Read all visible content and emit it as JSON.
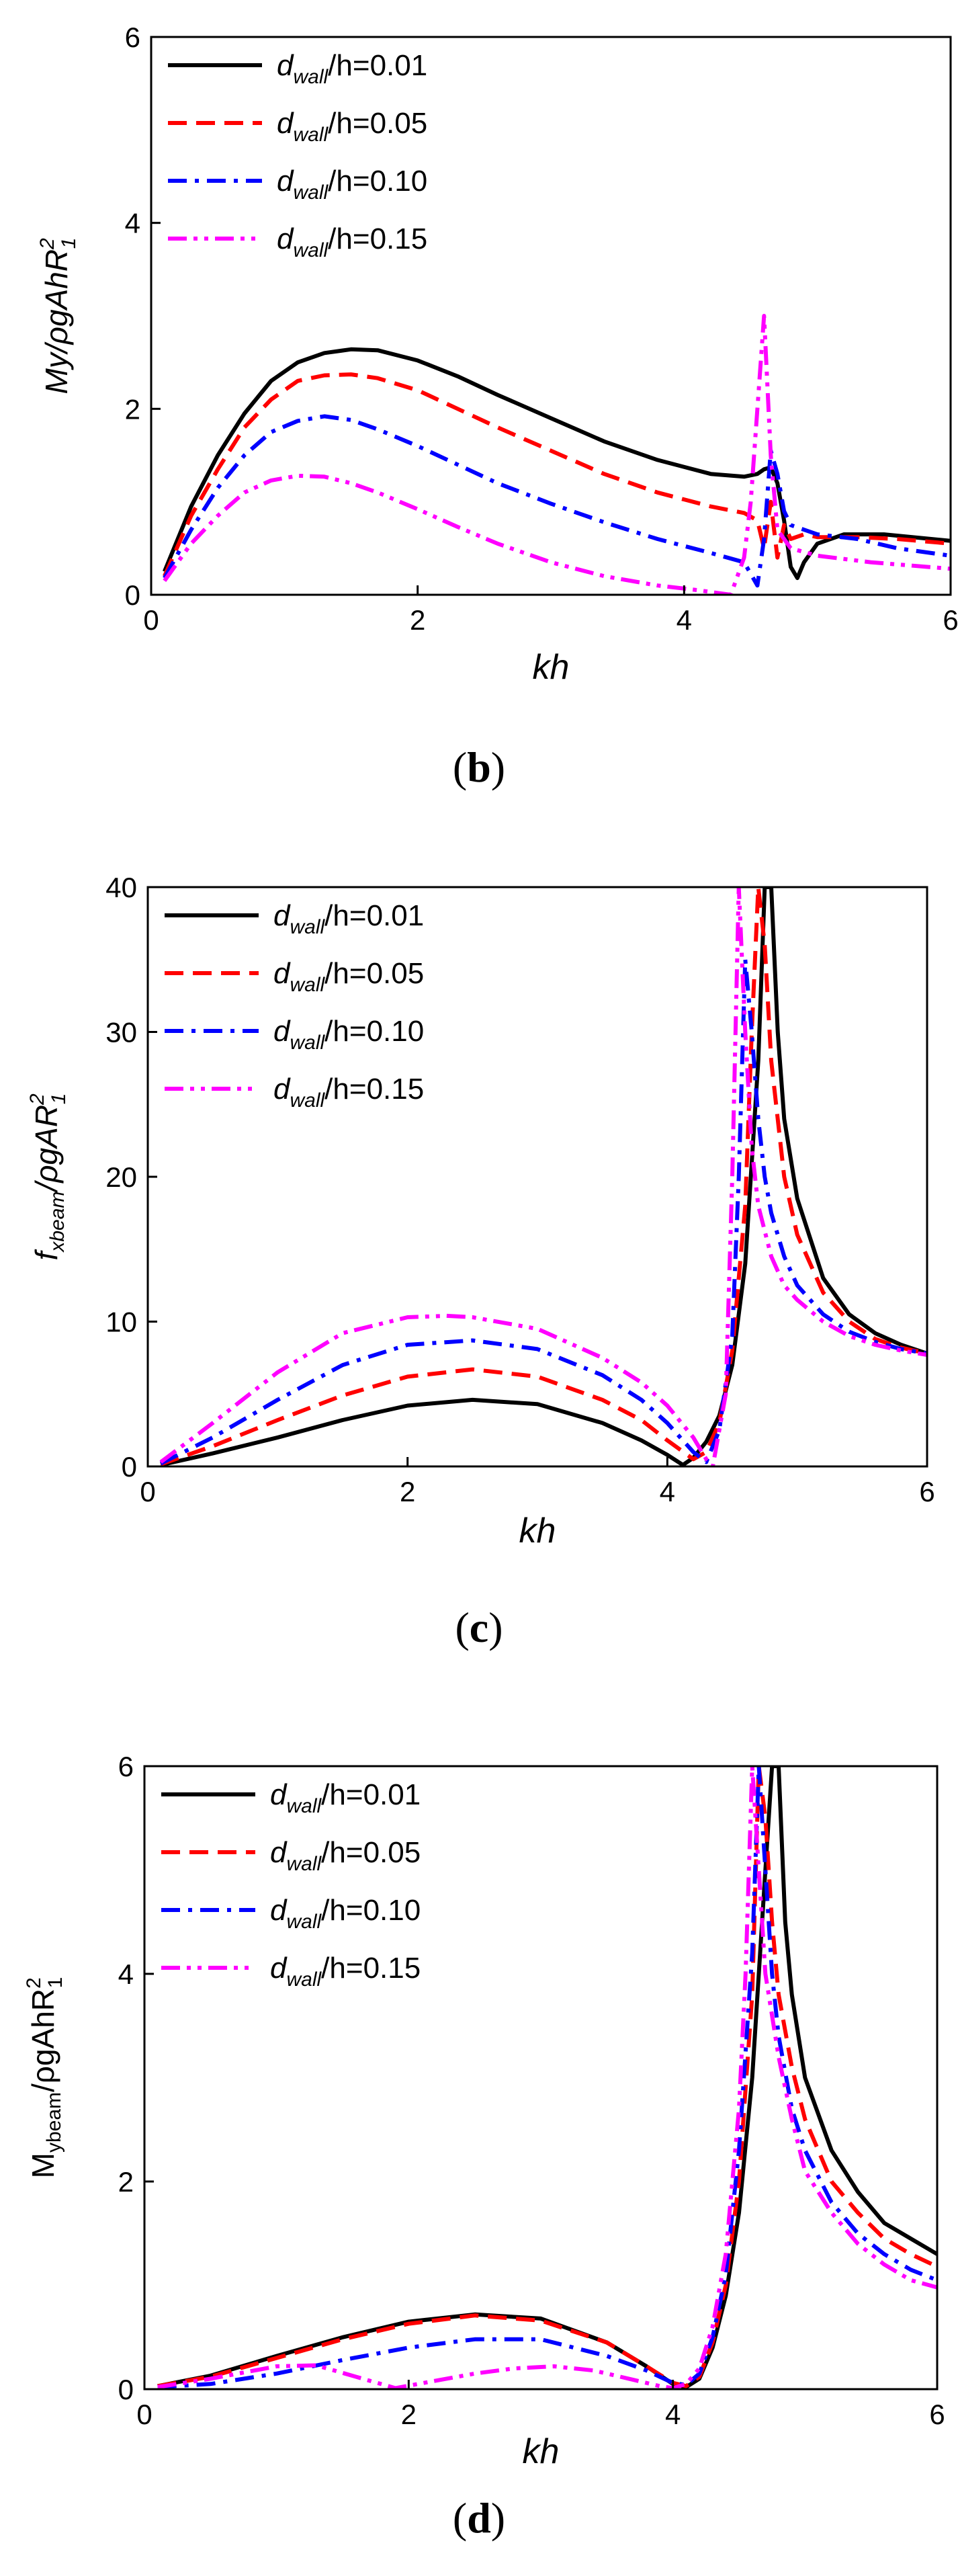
{
  "chart_data": [
    {
      "id": "b",
      "type": "line",
      "caption_letter": "b",
      "xlabel": "kh",
      "ylabel": "My/ρgAhR₁²",
      "ylabel_parts": {
        "main": "My/ρgAhR",
        "sup": "2",
        "sub": "1"
      },
      "xlim": [
        0,
        6
      ],
      "ylim": [
        0,
        6
      ],
      "xticks": [
        "0",
        "2",
        "4",
        "6"
      ],
      "yticks": [
        "0",
        "2",
        "4",
        "6"
      ],
      "legend": [
        {
          "sym": "d",
          "sub": "wall",
          "rest": "/h=0.01"
        },
        {
          "sym": "d",
          "sub": "wall",
          "rest": "/h=0.05"
        },
        {
          "sym": "d",
          "sub": "wall",
          "rest": "/h=0.10"
        },
        {
          "sym": "d",
          "sub": "wall",
          "rest": "/h=0.15"
        }
      ],
      "series": [
        {
          "name": "d_wall/h=0.01",
          "color": "#000000",
          "dash": "solid",
          "x": [
            0.1,
            0.3,
            0.5,
            0.7,
            0.9,
            1.1,
            1.3,
            1.5,
            1.7,
            2.0,
            2.3,
            2.6,
            3.0,
            3.4,
            3.8,
            4.2,
            4.45,
            4.55,
            4.6,
            4.65,
            4.7,
            4.75,
            4.8,
            4.85,
            4.9,
            5.0,
            5.2,
            5.5,
            6.0
          ],
          "y": [
            0.25,
            0.95,
            1.5,
            1.95,
            2.3,
            2.5,
            2.6,
            2.64,
            2.63,
            2.52,
            2.35,
            2.15,
            1.9,
            1.65,
            1.45,
            1.3,
            1.27,
            1.3,
            1.35,
            1.37,
            1.2,
            0.8,
            0.3,
            0.18,
            0.35,
            0.55,
            0.65,
            0.65,
            0.58
          ]
        },
        {
          "name": "d_wall/h=0.05",
          "color": "#ff0000",
          "dash": "dash",
          "x": [
            0.1,
            0.3,
            0.5,
            0.7,
            0.9,
            1.1,
            1.3,
            1.5,
            1.7,
            2.0,
            2.3,
            2.6,
            3.0,
            3.4,
            3.8,
            4.2,
            4.45,
            4.55,
            4.6,
            4.65,
            4.7,
            4.75,
            4.8,
            4.9,
            5.0,
            5.3,
            5.6,
            6.0
          ],
          "y": [
            0.2,
            0.85,
            1.35,
            1.8,
            2.1,
            2.3,
            2.36,
            2.37,
            2.33,
            2.2,
            2.0,
            1.8,
            1.55,
            1.3,
            1.1,
            0.95,
            0.88,
            0.8,
            0.5,
            1.0,
            0.4,
            0.75,
            0.6,
            0.65,
            0.62,
            0.62,
            0.6,
            0.55
          ]
        },
        {
          "name": "d_wall/h=0.10",
          "color": "#0000ff",
          "dash": "dashdot",
          "x": [
            0.1,
            0.3,
            0.5,
            0.7,
            0.9,
            1.1,
            1.3,
            1.5,
            1.7,
            2.0,
            2.3,
            2.6,
            3.0,
            3.4,
            3.8,
            4.2,
            4.45,
            4.55,
            4.6,
            4.65,
            4.7,
            4.75,
            4.8,
            4.9,
            5.0,
            5.3,
            5.6,
            6.0
          ],
          "y": [
            0.18,
            0.7,
            1.15,
            1.5,
            1.75,
            1.87,
            1.92,
            1.88,
            1.78,
            1.6,
            1.4,
            1.2,
            0.98,
            0.78,
            0.6,
            0.45,
            0.35,
            0.1,
            0.6,
            1.55,
            1.3,
            0.9,
            0.75,
            0.7,
            0.65,
            0.6,
            0.5,
            0.42
          ]
        },
        {
          "name": "d_wall/h=0.15",
          "color": "#ff00ff",
          "dash": "dashdotdot",
          "x": [
            0.1,
            0.3,
            0.5,
            0.7,
            0.9,
            1.1,
            1.3,
            1.5,
            1.7,
            2.0,
            2.3,
            2.6,
            3.0,
            3.4,
            3.8,
            4.1,
            4.35,
            4.45,
            4.5,
            4.55,
            4.6,
            4.65,
            4.7,
            4.8,
            5.0,
            5.4,
            6.0
          ],
          "y": [
            0.15,
            0.55,
            0.85,
            1.1,
            1.23,
            1.28,
            1.27,
            1.2,
            1.1,
            0.92,
            0.73,
            0.55,
            0.35,
            0.2,
            0.1,
            0.05,
            0.0,
            0.4,
            1.0,
            2.0,
            3.0,
            1.5,
            0.7,
            0.5,
            0.42,
            0.35,
            0.28
          ]
        }
      ]
    },
    {
      "id": "c",
      "type": "line",
      "caption_letter": "c",
      "xlabel": "kh",
      "ylabel": "f_xbeam/ρgAR₁²",
      "ylabel_parts": {
        "main": "f",
        "sub_main": "xbeam",
        "rest": "/ρgAR",
        "sup": "2",
        "sub": "1"
      },
      "xlim": [
        0,
        6
      ],
      "ylim": [
        0,
        40
      ],
      "xticks": [
        "0",
        "2",
        "4",
        "6"
      ],
      "yticks": [
        "0",
        "10",
        "20",
        "30",
        "40"
      ],
      "legend": [
        {
          "sym": "d",
          "sub": "wall",
          "rest": "/h=0.01"
        },
        {
          "sym": "d",
          "sub": "wall",
          "rest": "/h=0.05"
        },
        {
          "sym": "d",
          "sub": "wall",
          "rest": "/h=0.10"
        },
        {
          "sym": "d",
          "sub": "wall",
          "rest": "/h=0.15"
        }
      ],
      "series": [
        {
          "name": "d_wall/h=0.01",
          "color": "#000000",
          "dash": "solid",
          "x": [
            0.1,
            0.5,
            1.0,
            1.5,
            2.0,
            2.5,
            3.0,
            3.5,
            3.8,
            4.0,
            4.12,
            4.2,
            4.3,
            4.4,
            4.5,
            4.6,
            4.7,
            4.75,
            4.8,
            4.85,
            4.9,
            5.0,
            5.2,
            5.4,
            5.6,
            5.8,
            6.0
          ],
          "y": [
            0.1,
            0.9,
            2.0,
            3.2,
            4.2,
            4.6,
            4.3,
            3.0,
            1.8,
            0.8,
            0.1,
            0.6,
            1.7,
            3.5,
            7.0,
            14.0,
            28.0,
            40.0,
            40.0,
            30.0,
            24.0,
            18.5,
            13.0,
            10.5,
            9.2,
            8.4,
            7.8
          ]
        },
        {
          "name": "d_wall/h=0.05",
          "color": "#ff0000",
          "dash": "dash",
          "x": [
            0.1,
            0.5,
            1.0,
            1.5,
            2.0,
            2.5,
            3.0,
            3.5,
            3.8,
            4.0,
            4.2,
            4.3,
            4.4,
            4.5,
            4.6,
            4.65,
            4.7,
            4.75,
            4.8,
            4.9,
            5.0,
            5.2,
            5.4,
            5.6,
            5.8,
            6.0
          ],
          "y": [
            0.15,
            1.4,
            3.2,
            4.9,
            6.2,
            6.7,
            6.2,
            4.6,
            3.2,
            1.8,
            0.5,
            1.0,
            3.0,
            8.0,
            18.0,
            30.0,
            40.0,
            36.0,
            28.0,
            20.0,
            16.0,
            12.0,
            10.0,
            8.8,
            8.2,
            7.8
          ]
        },
        {
          "name": "d_wall/h=0.10",
          "color": "#0000ff",
          "dash": "dashdot",
          "x": [
            0.1,
            0.5,
            1.0,
            1.5,
            2.0,
            2.5,
            3.0,
            3.5,
            3.8,
            4.0,
            4.2,
            4.3,
            4.4,
            4.5,
            4.55,
            4.6,
            4.65,
            4.7,
            4.75,
            4.8,
            4.9,
            5.0,
            5.2,
            5.4,
            5.6,
            5.8,
            6.0
          ],
          "y": [
            0.2,
            2.0,
            4.6,
            7.0,
            8.4,
            8.7,
            8.1,
            6.3,
            4.6,
            3.0,
            1.0,
            0.3,
            2.5,
            9.0,
            20.0,
            35.0,
            30.0,
            24.0,
            20.0,
            17.5,
            14.5,
            12.5,
            10.5,
            9.3,
            8.6,
            8.1,
            7.8
          ]
        },
        {
          "name": "d_wall/h=0.15",
          "color": "#ff00ff",
          "dash": "dashdotdot",
          "x": [
            0.1,
            0.5,
            1.0,
            1.5,
            2.0,
            2.3,
            2.5,
            3.0,
            3.5,
            3.8,
            4.0,
            4.2,
            4.3,
            4.35,
            4.45,
            4.5,
            4.55,
            4.6,
            4.65,
            4.7,
            4.8,
            4.9,
            5.0,
            5.2,
            5.4,
            5.6,
            5.8,
            6.0
          ],
          "y": [
            0.3,
            3.0,
            6.5,
            9.2,
            10.3,
            10.4,
            10.3,
            9.5,
            7.5,
            5.8,
            4.2,
            2.0,
            0.5,
            0.0,
            5.0,
            20.0,
            40.0,
            30.0,
            22.0,
            18.0,
            14.5,
            12.5,
            11.5,
            10.0,
            9.0,
            8.4,
            8.0,
            7.7
          ]
        }
      ]
    },
    {
      "id": "d",
      "type": "line",
      "caption_letter": "d",
      "xlabel": "kh",
      "ylabel": "M_ybeam/ρgAhR₁²",
      "ylabel_parts": {
        "main": "M",
        "sub_main": "ybeam",
        "rest": "/ρgAhR",
        "sup": "2",
        "sub": "1"
      },
      "xlim": [
        0,
        6
      ],
      "ylim": [
        0,
        6
      ],
      "xticks": [
        "0",
        "2",
        "4",
        "6"
      ],
      "yticks": [
        "0",
        "2",
        "4",
        "6"
      ],
      "legend": [
        {
          "sym": "d",
          "sub": "wall",
          "rest": "/h=0.01"
        },
        {
          "sym": "d",
          "sub": "wall",
          "rest": "/h=0.05"
        },
        {
          "sym": "d",
          "sub": "wall",
          "rest": "/h=0.10"
        },
        {
          "sym": "d",
          "sub": "wall",
          "rest": "/h=0.15"
        }
      ],
      "series": [
        {
          "name": "d_wall/h=0.01",
          "color": "#000000",
          "dash": "solid",
          "x": [
            0.1,
            0.5,
            1.0,
            1.5,
            2.0,
            2.5,
            3.0,
            3.5,
            3.8,
            4.0,
            4.1,
            4.2,
            4.3,
            4.4,
            4.5,
            4.6,
            4.7,
            4.75,
            4.8,
            4.85,
            4.9,
            5.0,
            5.2,
            5.4,
            5.6,
            5.8,
            6.0
          ],
          "y": [
            0.03,
            0.13,
            0.32,
            0.5,
            0.65,
            0.72,
            0.68,
            0.45,
            0.22,
            0.05,
            0.02,
            0.1,
            0.4,
            0.9,
            1.7,
            3.0,
            5.0,
            6.0,
            6.0,
            4.5,
            3.8,
            3.0,
            2.3,
            1.9,
            1.6,
            1.45,
            1.3
          ]
        },
        {
          "name": "d_wall/h=0.05",
          "color": "#ff0000",
          "dash": "dash",
          "x": [
            0.1,
            0.5,
            1.0,
            1.5,
            2.0,
            2.5,
            3.0,
            3.5,
            3.8,
            4.0,
            4.1,
            4.2,
            4.3,
            4.4,
            4.5,
            4.6,
            4.65,
            4.7,
            4.75,
            4.8,
            4.9,
            5.0,
            5.2,
            5.4,
            5.6,
            5.8,
            6.0
          ],
          "y": [
            0.03,
            0.12,
            0.3,
            0.48,
            0.63,
            0.71,
            0.66,
            0.45,
            0.22,
            0.06,
            0.03,
            0.12,
            0.45,
            1.0,
            2.0,
            3.8,
            6.0,
            5.5,
            4.5,
            3.8,
            3.1,
            2.6,
            2.0,
            1.7,
            1.45,
            1.3,
            1.18
          ]
        },
        {
          "name": "d_wall/h=0.10",
          "color": "#0000ff",
          "dash": "dashdot",
          "x": [
            0.1,
            0.5,
            1.0,
            1.5,
            2.0,
            2.5,
            3.0,
            3.5,
            3.8,
            4.0,
            4.1,
            4.2,
            4.3,
            4.4,
            4.5,
            4.6,
            4.65,
            4.7,
            4.75,
            4.8,
            4.9,
            5.0,
            5.2,
            5.4,
            5.6,
            5.8,
            6.0
          ],
          "y": [
            0.02,
            0.05,
            0.15,
            0.28,
            0.4,
            0.48,
            0.48,
            0.32,
            0.18,
            0.06,
            0.04,
            0.15,
            0.5,
            1.1,
            2.3,
            4.2,
            6.0,
            5.0,
            4.0,
            3.4,
            2.7,
            2.3,
            1.8,
            1.5,
            1.3,
            1.15,
            1.05
          ]
        },
        {
          "name": "d_wall/h=0.15",
          "color": "#ff00ff",
          "dash": "dashdotdot",
          "x": [
            0.1,
            0.5,
            1.0,
            1.3,
            1.6,
            1.9,
            2.2,
            2.5,
            2.8,
            3.1,
            3.4,
            3.7,
            3.9,
            4.0,
            4.1,
            4.2,
            4.3,
            4.4,
            4.5,
            4.55,
            4.6,
            4.65,
            4.7,
            4.8,
            4.9,
            5.0,
            5.2,
            5.4,
            5.6,
            5.8,
            6.0
          ],
          "y": [
            0.02,
            0.1,
            0.22,
            0.23,
            0.12,
            0.01,
            0.08,
            0.15,
            0.2,
            0.22,
            0.18,
            0.09,
            0.03,
            0.01,
            0.05,
            0.2,
            0.6,
            1.3,
            2.7,
            4.0,
            6.0,
            5.0,
            4.0,
            3.2,
            2.6,
            2.1,
            1.7,
            1.4,
            1.2,
            1.05,
            0.98
          ]
        }
      ]
    }
  ]
}
